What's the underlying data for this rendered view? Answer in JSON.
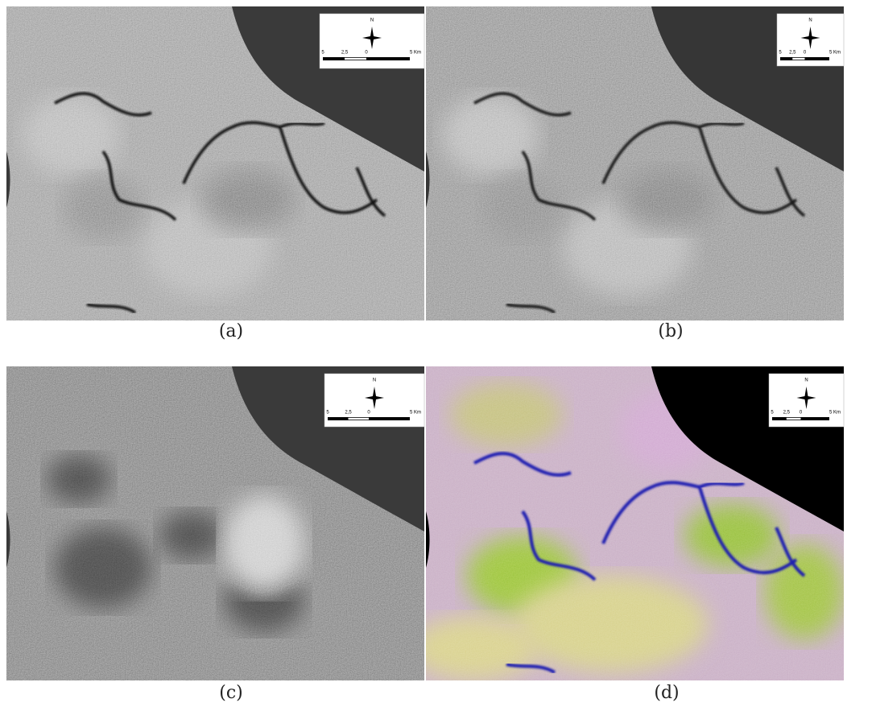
{
  "panels": [
    {
      "caption": "(a)",
      "legend": {
        "north": "N",
        "scale": [
          "5",
          "2,5",
          "0",
          "5 Km"
        ]
      }
    },
    {
      "caption": "(b)",
      "legend": {
        "north": "N",
        "scale": [
          "5",
          "2,5",
          "0",
          "5 Km"
        ]
      }
    },
    {
      "caption": "(c)",
      "legend": {
        "north": "N",
        "scale": [
          "5",
          "2,5",
          "0",
          "5 Km"
        ]
      }
    },
    {
      "caption": "(d)",
      "legend": {
        "north": "N",
        "scale": [
          "5",
          "2,5",
          "0",
          "5 Km"
        ]
      }
    }
  ]
}
